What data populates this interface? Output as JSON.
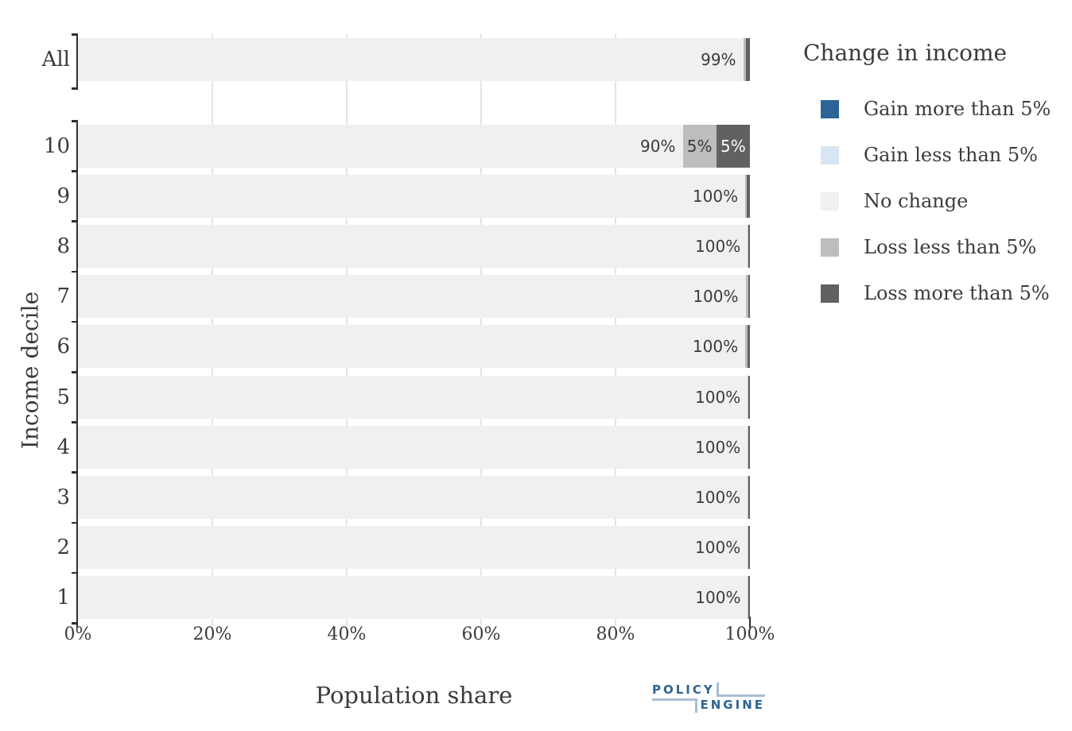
{
  "chart_data": {
    "type": "bar",
    "orientation": "horizontal",
    "stacked": true,
    "title": "",
    "xlabel": "Population share",
    "ylabel": "Income decile",
    "xlim": [
      0,
      100
    ],
    "grid": "vertical-light",
    "x_ticks": [
      {
        "label": "0%",
        "value": 0
      },
      {
        "label": "20%",
        "value": 20
      },
      {
        "label": "40%",
        "value": 40
      },
      {
        "label": "60%",
        "value": 60
      },
      {
        "label": "80%",
        "value": 80
      },
      {
        "label": "100%",
        "value": 100
      }
    ],
    "legend_title": "Change in income",
    "legend_position": "right",
    "legend": [
      {
        "key": "gain_more",
        "label": "Gain more than 5%",
        "color": "#2C6496"
      },
      {
        "key": "gain_less",
        "label": "Gain less than 5%",
        "color": "#D8E6F3"
      },
      {
        "key": "no_change",
        "label": "No change",
        "color": "#F0F0F0"
      },
      {
        "key": "loss_less",
        "label": "Loss less than 5%",
        "color": "#BDBDBD"
      },
      {
        "key": "loss_more",
        "label": "Loss more than 5%",
        "color": "#616161"
      }
    ],
    "groups": [
      {
        "name": "all",
        "rows": [
          {
            "label": "All",
            "segments": [
              {
                "key": "no_change",
                "value": 99.0,
                "label": "99%"
              },
              {
                "key": "loss_less",
                "value": 0.45,
                "label": ""
              },
              {
                "key": "loss_more",
                "value": 0.55,
                "label": ""
              }
            ]
          }
        ]
      },
      {
        "name": "deciles",
        "rows": [
          {
            "label": "10",
            "segments": [
              {
                "key": "no_change",
                "value": 90,
                "label": "90%"
              },
              {
                "key": "loss_less",
                "value": 5,
                "label": "5%"
              },
              {
                "key": "loss_more",
                "value": 5,
                "label": "5%"
              }
            ]
          },
          {
            "label": "9",
            "segments": [
              {
                "key": "no_change",
                "value": 99.3,
                "label": "100%"
              },
              {
                "key": "loss_less",
                "value": 0.25,
                "label": ""
              },
              {
                "key": "loss_more",
                "value": 0.45,
                "label": ""
              }
            ]
          },
          {
            "label": "8",
            "segments": [
              {
                "key": "no_change",
                "value": 99.67,
                "label": "100%"
              },
              {
                "key": "loss_less",
                "value": 0.08,
                "label": ""
              },
              {
                "key": "loss_more",
                "value": 0.25,
                "label": ""
              }
            ]
          },
          {
            "label": "7",
            "segments": [
              {
                "key": "no_change",
                "value": 99.35,
                "label": "100%"
              },
              {
                "key": "loss_less",
                "value": 0.45,
                "label": ""
              },
              {
                "key": "loss_more",
                "value": 0.2,
                "label": ""
              }
            ]
          },
          {
            "label": "6",
            "segments": [
              {
                "key": "no_change",
                "value": 99.3,
                "label": "100%"
              },
              {
                "key": "loss_less",
                "value": 0.3,
                "label": ""
              },
              {
                "key": "loss_more",
                "value": 0.4,
                "label": ""
              }
            ]
          },
          {
            "label": "5",
            "segments": [
              {
                "key": "no_change",
                "value": 99.67,
                "label": "100%"
              },
              {
                "key": "loss_less",
                "value": 0.08,
                "label": ""
              },
              {
                "key": "loss_more",
                "value": 0.25,
                "label": ""
              }
            ]
          },
          {
            "label": "4",
            "segments": [
              {
                "key": "no_change",
                "value": 99.67,
                "label": "100%"
              },
              {
                "key": "loss_less",
                "value": 0.08,
                "label": ""
              },
              {
                "key": "loss_more",
                "value": 0.25,
                "label": ""
              }
            ]
          },
          {
            "label": "3",
            "segments": [
              {
                "key": "no_change",
                "value": 99.67,
                "label": "100%"
              },
              {
                "key": "loss_less",
                "value": 0.08,
                "label": ""
              },
              {
                "key": "loss_more",
                "value": 0.25,
                "label": ""
              }
            ]
          },
          {
            "label": "2",
            "segments": [
              {
                "key": "no_change",
                "value": 99.67,
                "label": "100%"
              },
              {
                "key": "loss_less",
                "value": 0.08,
                "label": ""
              },
              {
                "key": "loss_more",
                "value": 0.25,
                "label": ""
              }
            ]
          },
          {
            "label": "1",
            "segments": [
              {
                "key": "no_change",
                "value": 99.7,
                "label": "100%"
              },
              {
                "key": "loss_less",
                "value": 0.05,
                "label": ""
              },
              {
                "key": "loss_more",
                "value": 0.25,
                "label": ""
              }
            ]
          }
        ]
      }
    ]
  },
  "logo": {
    "line1": "POLICY",
    "line2": "ENGINE"
  }
}
